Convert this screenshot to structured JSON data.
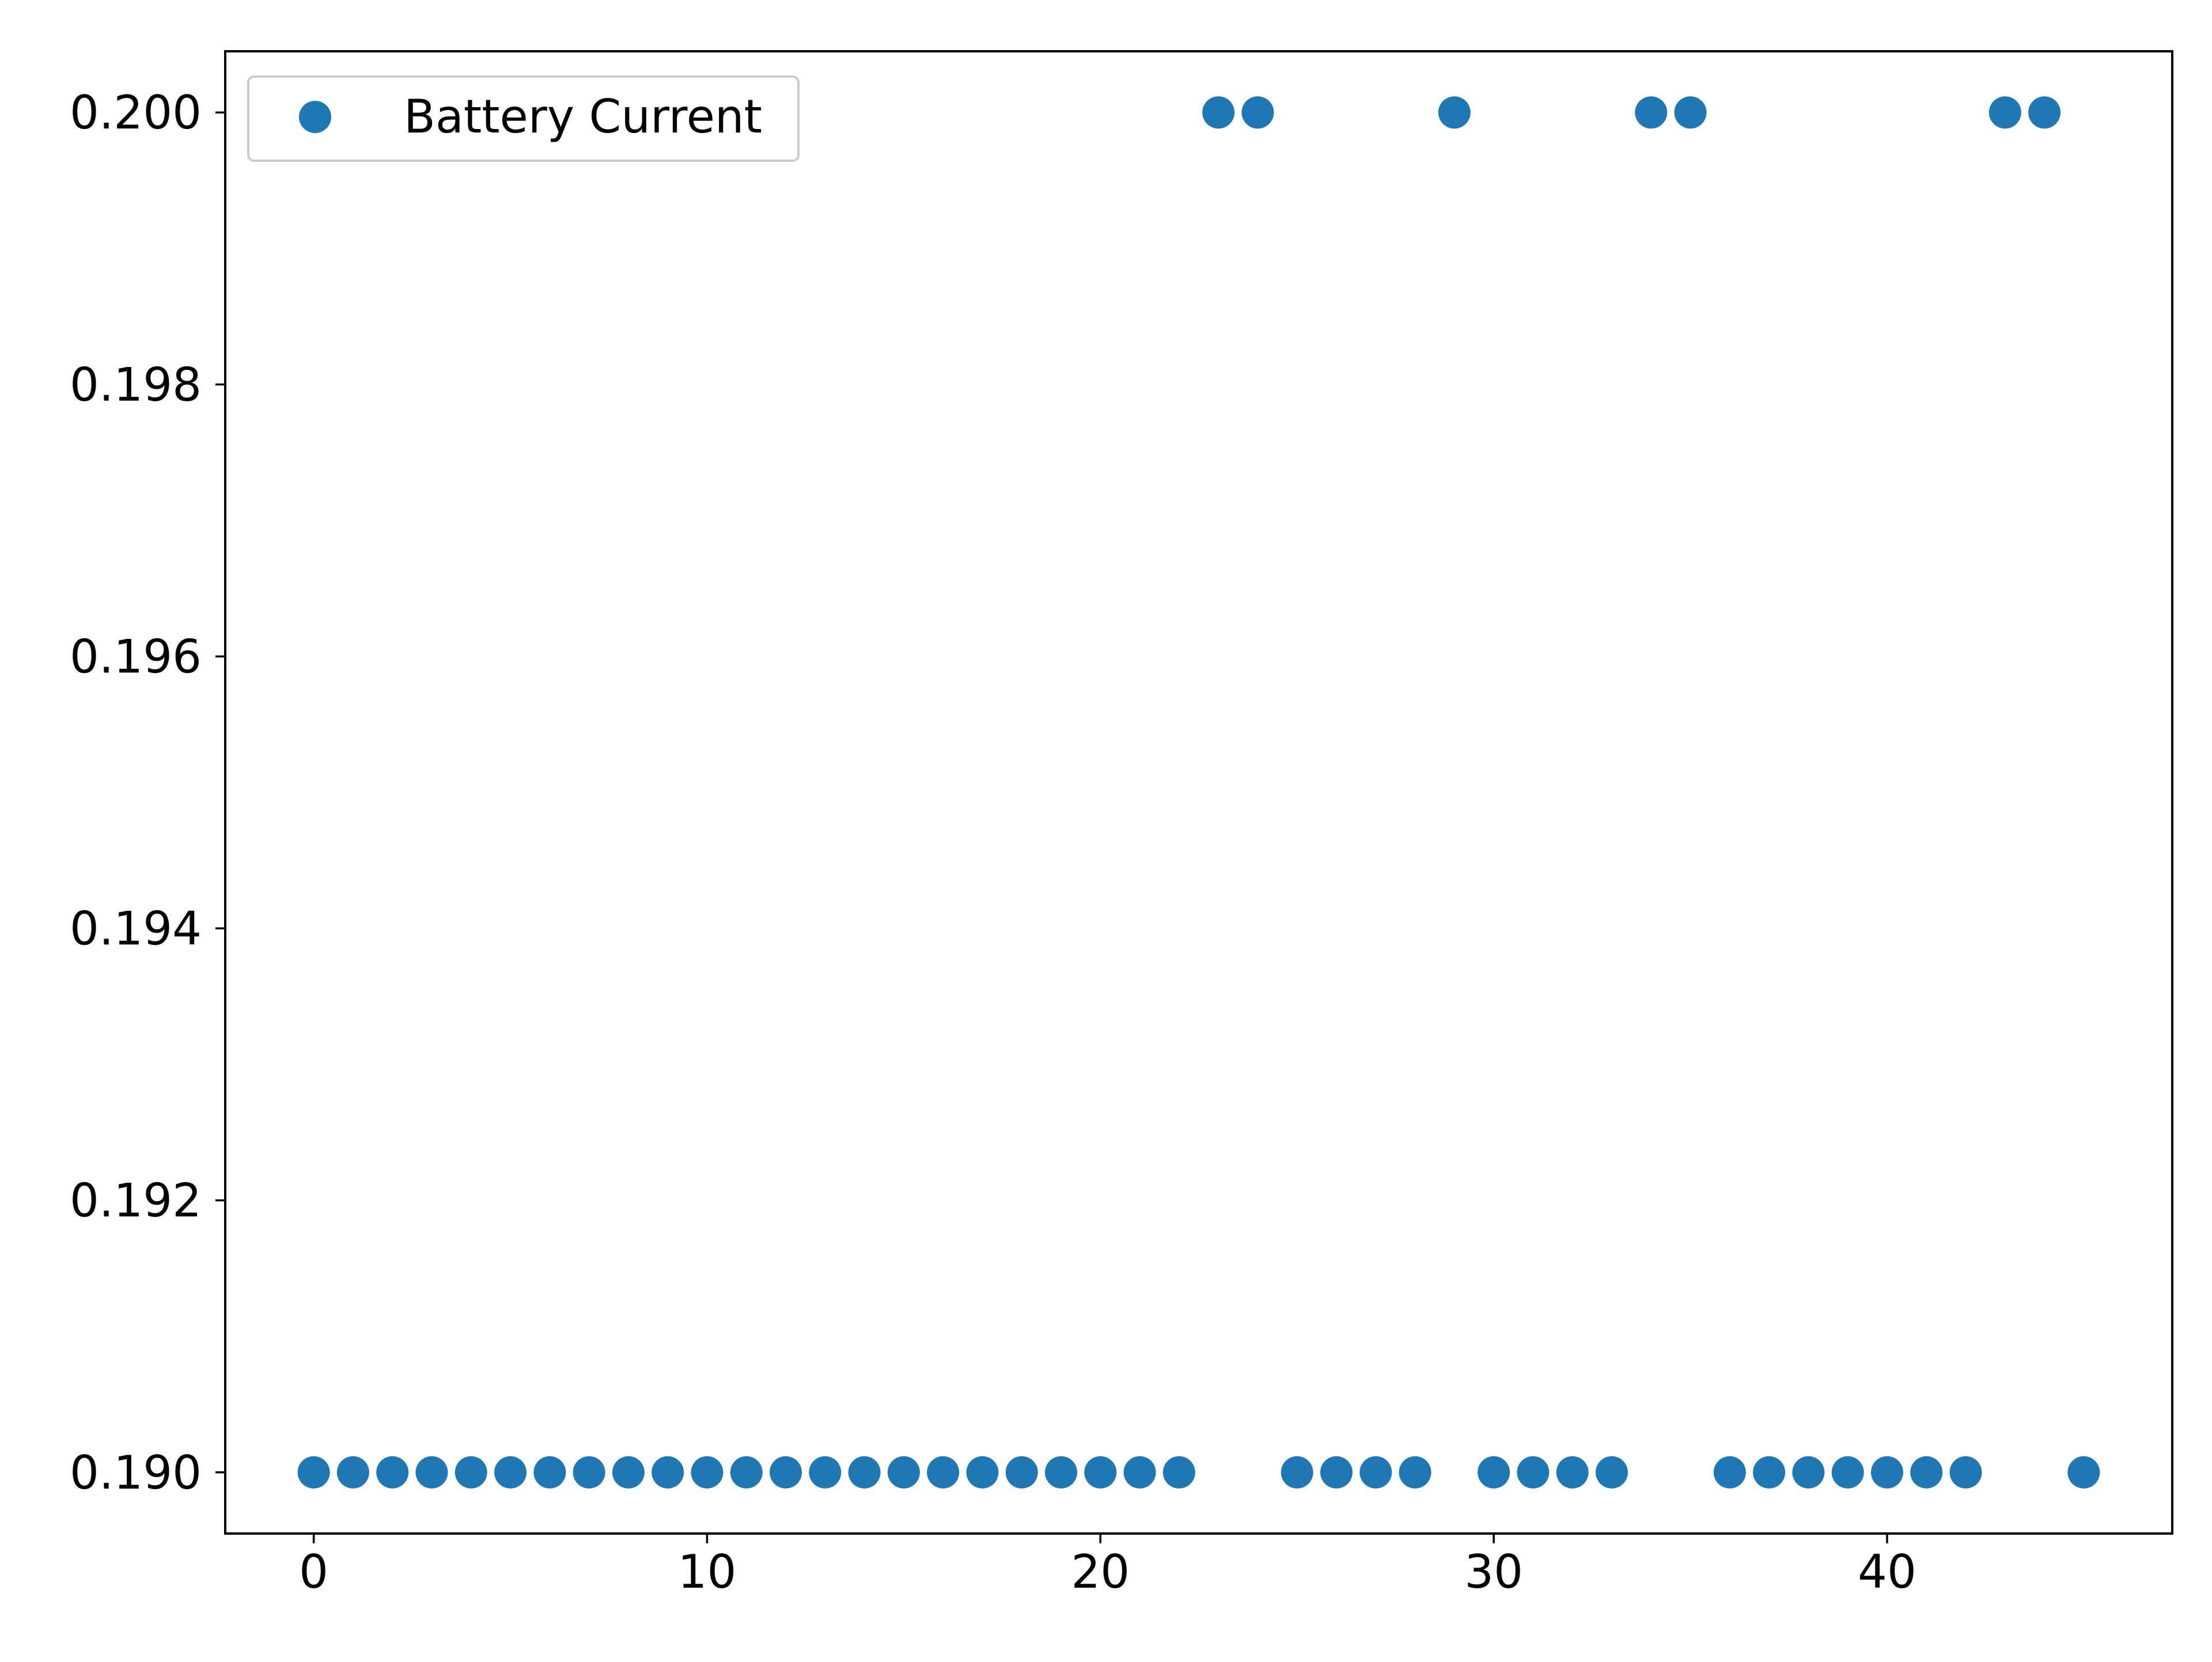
{
  "chart_data": {
    "type": "scatter",
    "title": "",
    "xlabel": "",
    "ylabel": "",
    "xlim": [
      -2.25,
      47.25
    ],
    "ylim": [
      0.18955,
      0.20045
    ],
    "xticks": [
      0,
      10,
      20,
      30,
      40
    ],
    "xtick_labels": [
      "0",
      "10",
      "20",
      "30",
      "40"
    ],
    "yticks": [
      0.19,
      0.192,
      0.194,
      0.196,
      0.198,
      0.2
    ],
    "ytick_labels": [
      "0.190",
      "0.192",
      "0.194",
      "0.196",
      "0.198",
      "0.200"
    ],
    "grid": false,
    "legend": {
      "position": "upper-left",
      "entries": [
        "Battery Current"
      ]
    },
    "series": [
      {
        "name": "Battery Current",
        "color": "#1f77b4",
        "marker": "circle",
        "x": [
          0,
          1,
          2,
          3,
          4,
          5,
          6,
          7,
          8,
          9,
          10,
          11,
          12,
          13,
          14,
          15,
          16,
          17,
          18,
          19,
          20,
          21,
          22,
          23,
          24,
          25,
          26,
          27,
          28,
          29,
          30,
          31,
          32,
          33,
          34,
          35,
          36,
          37,
          38,
          39,
          40,
          41,
          42,
          43,
          44,
          45
        ],
        "y": [
          0.19,
          0.19,
          0.19,
          0.19,
          0.19,
          0.19,
          0.19,
          0.19,
          0.19,
          0.19,
          0.19,
          0.19,
          0.19,
          0.19,
          0.19,
          0.19,
          0.19,
          0.19,
          0.19,
          0.19,
          0.19,
          0.19,
          0.19,
          0.2,
          0.2,
          0.19,
          0.19,
          0.19,
          0.19,
          0.2,
          0.19,
          0.19,
          0.19,
          0.19,
          0.2,
          0.2,
          0.19,
          0.19,
          0.19,
          0.19,
          0.19,
          0.19,
          0.19,
          0.2,
          0.2,
          0.19
        ]
      }
    ]
  }
}
